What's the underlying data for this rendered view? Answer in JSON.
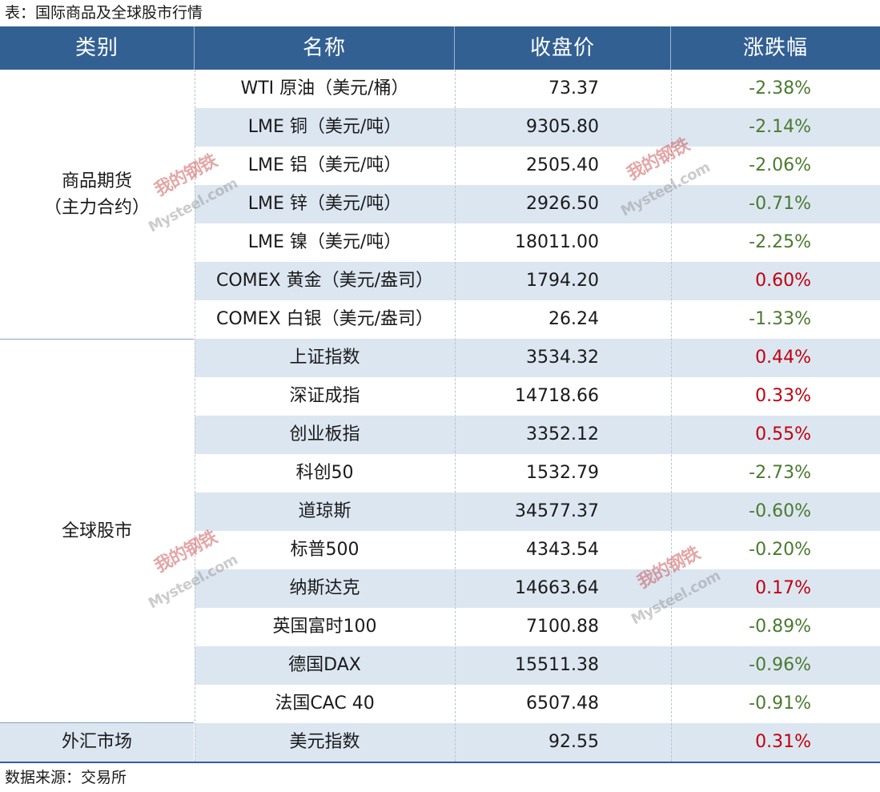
{
  "caption": "表：国际商品及全球股市行情",
  "headers": {
    "category": "类别",
    "name": "名称",
    "price": "收盘价",
    "change": "涨跌幅"
  },
  "categories": {
    "commodities_line1": "商品期货",
    "commodities_line2": "（主力合约）",
    "stocks": "全球股市",
    "forex": "外汇市场"
  },
  "rows": [
    {
      "name": "WTI 原油（美元/桶）",
      "price": "73.37",
      "change": "-2.38%"
    },
    {
      "name": "LME 铜（美元/吨）",
      "price": "9305.80",
      "change": "-2.14%"
    },
    {
      "name": "LME 铝（美元/吨）",
      "price": "2505.40",
      "change": "-2.06%"
    },
    {
      "name": "LME 锌（美元/吨）",
      "price": "2926.50",
      "change": "-0.71%"
    },
    {
      "name": "LME 镍（美元/吨）",
      "price": "18011.00",
      "change": "-2.25%"
    },
    {
      "name": "COMEX 黄金（美元/盎司）",
      "price": "1794.20",
      "change": "0.60%"
    },
    {
      "name": "COMEX 白银（美元/盎司）",
      "price": "26.24",
      "change": "-1.33%"
    },
    {
      "name": "上证指数",
      "price": "3534.32",
      "change": "0.44%"
    },
    {
      "name": "深证成指",
      "price": "14718.66",
      "change": "0.33%"
    },
    {
      "name": "创业板指",
      "price": "3352.12",
      "change": "0.55%"
    },
    {
      "name": "科创50",
      "price": "1532.79",
      "change": "-2.73%"
    },
    {
      "name": "道琼斯",
      "price": "34577.37",
      "change": "-0.60%"
    },
    {
      "name": "标普500",
      "price": "4343.54",
      "change": "-0.20%"
    },
    {
      "name": "纳斯达克",
      "price": "14663.64",
      "change": "0.17%"
    },
    {
      "name": "英国富时100",
      "price": "7100.88",
      "change": "-0.89%"
    },
    {
      "name": "德国DAX",
      "price": "15511.38",
      "change": "-0.96%"
    },
    {
      "name": "法国CAC 40",
      "price": "6507.48",
      "change": "-0.91%"
    },
    {
      "name": "美元指数",
      "price": "92.55",
      "change": "0.31%"
    }
  ],
  "watermark": {
    "cn": "我的钢铁",
    "en": "Mysteel.com"
  },
  "source": "数据来源：交易所",
  "colors": {
    "header_bg": "#336093",
    "row_shade": "#dce6f1",
    "negative": "#4a7a2e",
    "positive": "#c0000c"
  }
}
